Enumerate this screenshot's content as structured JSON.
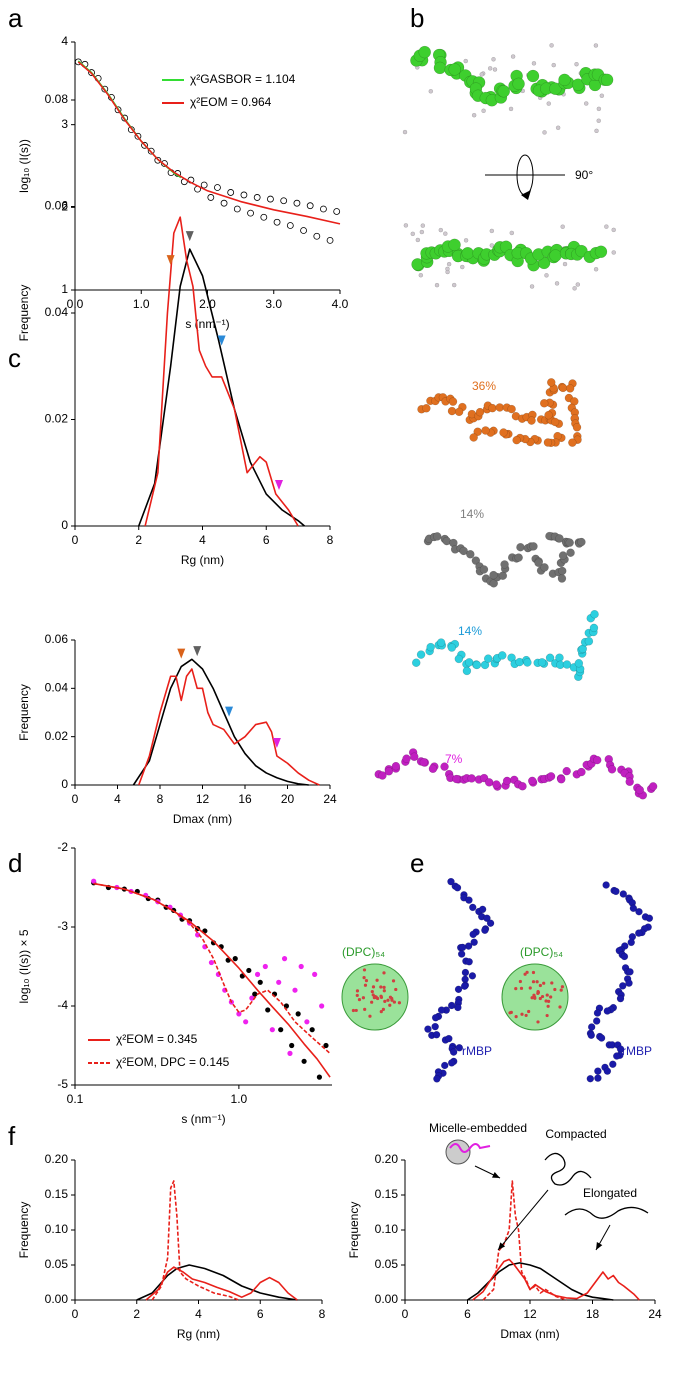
{
  "panel_labels": [
    "a",
    "b",
    "c",
    "d",
    "e",
    "f"
  ],
  "rotation_label": "90°",
  "ensemble_labels": [
    {
      "text": "36%",
      "color": "#e0701e"
    },
    {
      "text": "14%",
      "color": "#808080"
    },
    {
      "text": "14%",
      "color": "#1a9ad8"
    },
    {
      "text": "7%",
      "color": "#e020e0"
    }
  ],
  "micelle_labels": [
    "(DPC)₅₄",
    "(DPC)₅₄"
  ],
  "protein_labels": [
    "rMBP",
    "rMBP"
  ],
  "chart_data": [
    {
      "type": "line",
      "ylabel": "log₁₀ (I(s))",
      "xlabel": "s (nm⁻¹)",
      "xlim": [
        0,
        4
      ],
      "ylim": [
        1,
        4
      ],
      "xticks": [
        {
          "value": 0,
          "label": "0.0"
        },
        {
          "value": 1,
          "label": "1.0"
        },
        {
          "value": 2,
          "label": "2.0"
        },
        {
          "value": 3,
          "label": "3.0"
        },
        {
          "value": 4,
          "label": "4.0"
        }
      ],
      "yticks": [
        1,
        2,
        3,
        4
      ],
      "series": [
        {
          "kind": "scatter",
          "marker": "open",
          "color": "#000000",
          "x": [
            0.05,
            0.15,
            0.25,
            0.35,
            0.45,
            0.55,
            0.65,
            0.75,
            0.85,
            0.95,
            1.05,
            1.15,
            1.25,
            1.35,
            1.45,
            1.55,
            1.65,
            1.75,
            1.85,
            1.95,
            2.05,
            2.15,
            2.25,
            2.35,
            2.45,
            2.55,
            2.65,
            2.75,
            2.85,
            2.95,
            3.05,
            3.15,
            3.25,
            3.35,
            3.45,
            3.55,
            3.65,
            3.75,
            3.85,
            3.95
          ],
          "values": [
            3.76,
            3.73,
            3.63,
            3.56,
            3.43,
            3.33,
            3.18,
            3.08,
            2.94,
            2.86,
            2.75,
            2.68,
            2.57,
            2.53,
            2.42,
            2.41,
            2.31,
            2.33,
            2.22,
            2.27,
            2.12,
            2.24,
            2.05,
            2.18,
            1.98,
            2.15,
            1.93,
            2.12,
            1.88,
            2.1,
            1.82,
            2.08,
            1.78,
            2.05,
            1.72,
            2.02,
            1.65,
            1.98,
            1.6,
            1.95
          ]
        },
        {
          "name": "χ²GASBOR = 1.104",
          "kind": "line",
          "color": "#33dd33",
          "x": [
            0.05,
            0.25,
            0.5,
            0.75,
            1.0,
            1.25,
            1.5,
            1.6
          ],
          "values": [
            3.77,
            3.63,
            3.37,
            3.07,
            2.8,
            2.58,
            2.41,
            2.36
          ]
        },
        {
          "name": "χ²EOM = 0.964",
          "kind": "line",
          "color": "#e8201a",
          "x": [
            0.05,
            0.25,
            0.5,
            0.75,
            1.0,
            1.25,
            1.5,
            1.75,
            2.0,
            2.5,
            3.0,
            3.5,
            4.0
          ],
          "values": [
            3.76,
            3.62,
            3.36,
            3.06,
            2.8,
            2.58,
            2.42,
            2.3,
            2.2,
            2.07,
            1.97,
            1.89,
            1.8
          ]
        }
      ]
    },
    {
      "type": "line",
      "ylabel": "Frequency",
      "xlabel": "Rg (nm)",
      "xlim": [
        0,
        8
      ],
      "ylim": [
        0,
        0.08
      ],
      "xticks": [
        0,
        2,
        4,
        6,
        8
      ],
      "yticks": [
        0,
        0.02,
        0.04,
        0.06,
        0.08
      ],
      "series": [
        {
          "kind": "line",
          "color": "#000000",
          "x": [
            2,
            2.5,
            3,
            3.3,
            3.6,
            4,
            4.5,
            5,
            5.5,
            6,
            6.5,
            7,
            7.2
          ],
          "values": [
            0,
            0.008,
            0.03,
            0.045,
            0.052,
            0.047,
            0.035,
            0.022,
            0.012,
            0.006,
            0.003,
            0.001,
            0
          ]
        },
        {
          "kind": "line",
          "color": "#e8201a",
          "x": [
            2.2,
            2.6,
            2.9,
            3.1,
            3.3,
            3.5,
            3.7,
            3.9,
            4.1,
            4.3,
            4.6,
            5.0,
            5.4,
            5.8,
            6.0,
            6.3,
            6.7,
            7.0
          ],
          "values": [
            0,
            0.01,
            0.04,
            0.055,
            0.058,
            0.05,
            0.045,
            0.033,
            0.03,
            0.028,
            0.028,
            0.022,
            0.01,
            0.013,
            0.012,
            0.006,
            0.003,
            0
          ]
        }
      ],
      "markers": [
        {
          "x": 3.0,
          "color": "#d9621a"
        },
        {
          "x": 3.6,
          "color": "#606060"
        },
        {
          "x": 4.6,
          "color": "#2a8ad8"
        },
        {
          "x": 6.4,
          "color": "#e020e0"
        }
      ]
    },
    {
      "type": "line",
      "ylabel": "Frequency",
      "xlabel": "Dmax (nm)",
      "xlim": [
        0,
        24
      ],
      "ylim": [
        0,
        0.06
      ],
      "xticks": [
        0,
        4,
        8,
        12,
        16,
        20,
        24
      ],
      "yticks": [
        0,
        0.02,
        0.04,
        0.06
      ],
      "series": [
        {
          "kind": "line",
          "color": "#000000",
          "x": [
            5.5,
            7,
            8,
            9,
            10,
            11,
            12,
            13,
            14,
            15,
            16,
            17,
            18,
            19,
            20,
            21,
            22
          ],
          "values": [
            0,
            0.01,
            0.025,
            0.04,
            0.049,
            0.052,
            0.048,
            0.04,
            0.03,
            0.02,
            0.013,
            0.008,
            0.005,
            0.003,
            0.0015,
            0.0005,
            0
          ]
        },
        {
          "kind": "line",
          "color": "#e8201a",
          "x": [
            6,
            7,
            8,
            9,
            9.5,
            10,
            10.5,
            11,
            11.5,
            12,
            12.5,
            13,
            14,
            15,
            16,
            17,
            18,
            18.5,
            19,
            20,
            21,
            22,
            23
          ],
          "values": [
            0,
            0.012,
            0.03,
            0.045,
            0.045,
            0.035,
            0.045,
            0.048,
            0.04,
            0.04,
            0.03,
            0.025,
            0.023,
            0.017,
            0.02,
            0.025,
            0.026,
            0.022,
            0.012,
            0.009,
            0.005,
            0.002,
            0
          ]
        }
      ],
      "markers": [
        {
          "x": 10,
          "color": "#d9621a"
        },
        {
          "x": 11.5,
          "color": "#606060"
        },
        {
          "x": 14.5,
          "color": "#2a8ad8"
        },
        {
          "x": 19,
          "color": "#e020e0"
        }
      ]
    },
    {
      "type": "line",
      "ylabel": "log₁₀ (I(s)) × 5",
      "xlabel": "s (nm⁻¹)",
      "xscale": "log",
      "xlim": [
        0.1,
        3.7
      ],
      "ylim": [
        -5,
        -2
      ],
      "xticks": [
        0.1,
        {
          "value": 1,
          "label": "1.0"
        }
      ],
      "yticks": [
        -2,
        -3,
        -4,
        -5
      ],
      "series": [
        {
          "kind": "scatter",
          "marker": "dot",
          "color": "#000000",
          "x": [
            0.13,
            0.16,
            0.2,
            0.24,
            0.28,
            0.32,
            0.36,
            0.4,
            0.45,
            0.5,
            0.56,
            0.62,
            0.7,
            0.78,
            0.86,
            0.95,
            1.05,
            1.15,
            1.25,
            1.35,
            1.5,
            1.65,
            1.8,
            1.95,
            2.1,
            2.3,
            2.5,
            2.8,
            3.1,
            3.4
          ],
          "values": [
            -2.44,
            -2.5,
            -2.52,
            -2.55,
            -2.64,
            -2.66,
            -2.75,
            -2.79,
            -2.9,
            -2.92,
            -3.02,
            -3.05,
            -3.2,
            -3.25,
            -3.42,
            -3.4,
            -3.62,
            -3.55,
            -3.85,
            -3.7,
            -4.05,
            -3.85,
            -4.3,
            -4.0,
            -4.5,
            -4.1,
            -4.7,
            -4.3,
            -4.9,
            -4.5
          ]
        },
        {
          "kind": "scatter",
          "marker": "dot",
          "color": "#ee22ee",
          "x": [
            0.13,
            0.18,
            0.22,
            0.27,
            0.32,
            0.38,
            0.44,
            0.5,
            0.56,
            0.62,
            0.68,
            0.75,
            0.82,
            0.9,
            1.0,
            1.1,
            1.2,
            1.3,
            1.45,
            1.6,
            1.75,
            1.9,
            2.05,
            2.2,
            2.4,
            2.6,
            2.9,
            3.2
          ],
          "values": [
            -2.42,
            -2.5,
            -2.55,
            -2.6,
            -2.68,
            -2.75,
            -2.85,
            -2.95,
            -3.1,
            -3.25,
            -3.45,
            -3.6,
            -3.8,
            -3.95,
            -4.1,
            -4.2,
            -3.9,
            -3.6,
            -3.5,
            -4.3,
            -3.7,
            -3.4,
            -4.6,
            -3.8,
            -3.5,
            -4.2,
            -3.6,
            -4.0
          ]
        },
        {
          "name": "χ²EOM = 0.345",
          "kind": "line",
          "color": "#e8201a",
          "x": [
            0.13,
            0.2,
            0.3,
            0.4,
            0.5,
            0.7,
            1.0,
            1.3,
            1.6,
            2.0,
            2.5,
            3.0,
            3.6
          ],
          "values": [
            -2.45,
            -2.52,
            -2.65,
            -2.8,
            -2.93,
            -3.18,
            -3.52,
            -3.8,
            -4.01,
            -4.23,
            -4.48,
            -4.67,
            -4.9
          ]
        },
        {
          "name": "χ²EOM, DPC = 0.145",
          "kind": "line",
          "dash": true,
          "color": "#e8201a",
          "x": [
            0.13,
            0.2,
            0.3,
            0.4,
            0.5,
            0.6,
            0.7,
            0.8,
            0.9,
            1.0,
            1.1,
            1.3,
            1.5,
            1.8,
            2.2,
            2.8,
            3.6
          ],
          "values": [
            -2.45,
            -2.52,
            -2.65,
            -2.8,
            -2.95,
            -3.15,
            -3.4,
            -3.7,
            -3.95,
            -4.08,
            -4.05,
            -3.85,
            -3.8,
            -3.95,
            -4.2,
            -4.4,
            -4.6
          ]
        }
      ]
    },
    {
      "type": "line",
      "ylabel": "Frequency",
      "xlabel": "Rg (nm)",
      "xlim": [
        0,
        8
      ],
      "ylim": [
        0,
        0.2
      ],
      "xticks": [
        0,
        2,
        4,
        6,
        8
      ],
      "yticks": [
        {
          "value": 0,
          "label": "0.00"
        },
        0.05,
        {
          "value": 0.1,
          "label": "0.10"
        },
        0.15,
        {
          "value": 0.2,
          "label": "0.20"
        }
      ],
      "series": [
        {
          "kind": "line",
          "color": "#000000",
          "x": [
            2,
            2.5,
            3,
            3.3,
            3.7,
            4.2,
            4.8,
            5.4,
            6,
            6.6,
            7.2
          ],
          "values": [
            0,
            0.01,
            0.035,
            0.045,
            0.05,
            0.045,
            0.035,
            0.02,
            0.01,
            0.004,
            0
          ]
        },
        {
          "kind": "line",
          "color": "#e8201a",
          "x": [
            2.3,
            2.7,
            3.0,
            3.2,
            3.5,
            3.8,
            4.2,
            4.6,
            5.0,
            5.4,
            5.7,
            6.0,
            6.3,
            6.6,
            6.9,
            7.2
          ],
          "values": [
            0,
            0.015,
            0.04,
            0.047,
            0.04,
            0.03,
            0.025,
            0.018,
            0.012,
            0.004,
            0.01,
            0.025,
            0.032,
            0.025,
            0.01,
            0
          ]
        },
        {
          "kind": "line",
          "dash": true,
          "color": "#e8201a",
          "x": [
            2.5,
            2.8,
            3.0,
            3.1,
            3.2,
            3.3,
            3.4,
            3.6,
            4.0,
            4.5,
            5.0,
            5.3
          ],
          "values": [
            0,
            0.02,
            0.06,
            0.16,
            0.17,
            0.12,
            0.04,
            0.03,
            0.02,
            0.01,
            0.005,
            0
          ]
        }
      ]
    },
    {
      "type": "line",
      "ylabel": "Frequency",
      "xlabel": "Dmax (nm)",
      "xlim": [
        0,
        24
      ],
      "ylim": [
        0,
        0.2
      ],
      "xticks": [
        0,
        6,
        12,
        18,
        24
      ],
      "yticks": [
        {
          "value": 0,
          "label": "0.00"
        },
        0.05,
        {
          "value": 0.1,
          "label": "0.10"
        },
        0.15,
        {
          "value": 0.2,
          "label": "0.20"
        }
      ],
      "series": [
        {
          "kind": "line",
          "color": "#000000",
          "x": [
            6,
            7,
            8,
            9,
            10,
            11,
            12,
            13,
            14,
            15,
            16,
            17,
            18,
            19,
            20
          ],
          "values": [
            0,
            0.01,
            0.025,
            0.04,
            0.05,
            0.053,
            0.05,
            0.045,
            0.035,
            0.025,
            0.015,
            0.008,
            0.004,
            0.002,
            0
          ]
        },
        {
          "kind": "line",
          "color": "#e8201a",
          "x": [
            6.5,
            7.5,
            8.5,
            9.5,
            10,
            10.5,
            11.5,
            12,
            12.5,
            13.5,
            14.5,
            15.5,
            16.5,
            17.5,
            18.5,
            19,
            19.5,
            20,
            20.5,
            21,
            22,
            22.5
          ],
          "values": [
            0,
            0.012,
            0.035,
            0.055,
            0.058,
            0.05,
            0.03,
            0.015,
            0.022,
            0.012,
            0.006,
            0.003,
            0.002,
            0.01,
            0.03,
            0.04,
            0.03,
            0.035,
            0.025,
            0.02,
            0.008,
            0
          ]
        },
        {
          "kind": "line",
          "dash": true,
          "color": "#e8201a",
          "x": [
            7.5,
            8.5,
            9,
            9.5,
            10,
            10.3,
            10.6,
            10.9,
            11.2,
            11.6,
            12,
            12.5,
            13,
            13.5,
            14.5,
            15.5
          ],
          "values": [
            0,
            0.015,
            0.07,
            0.08,
            0.1,
            0.17,
            0.12,
            0.1,
            0.04,
            0.03,
            0.015,
            0.02,
            0.01,
            0.015,
            0.005,
            0
          ]
        }
      ],
      "annotations": [
        "Micelle-embedded",
        "Compacted",
        "Elongated"
      ]
    }
  ]
}
